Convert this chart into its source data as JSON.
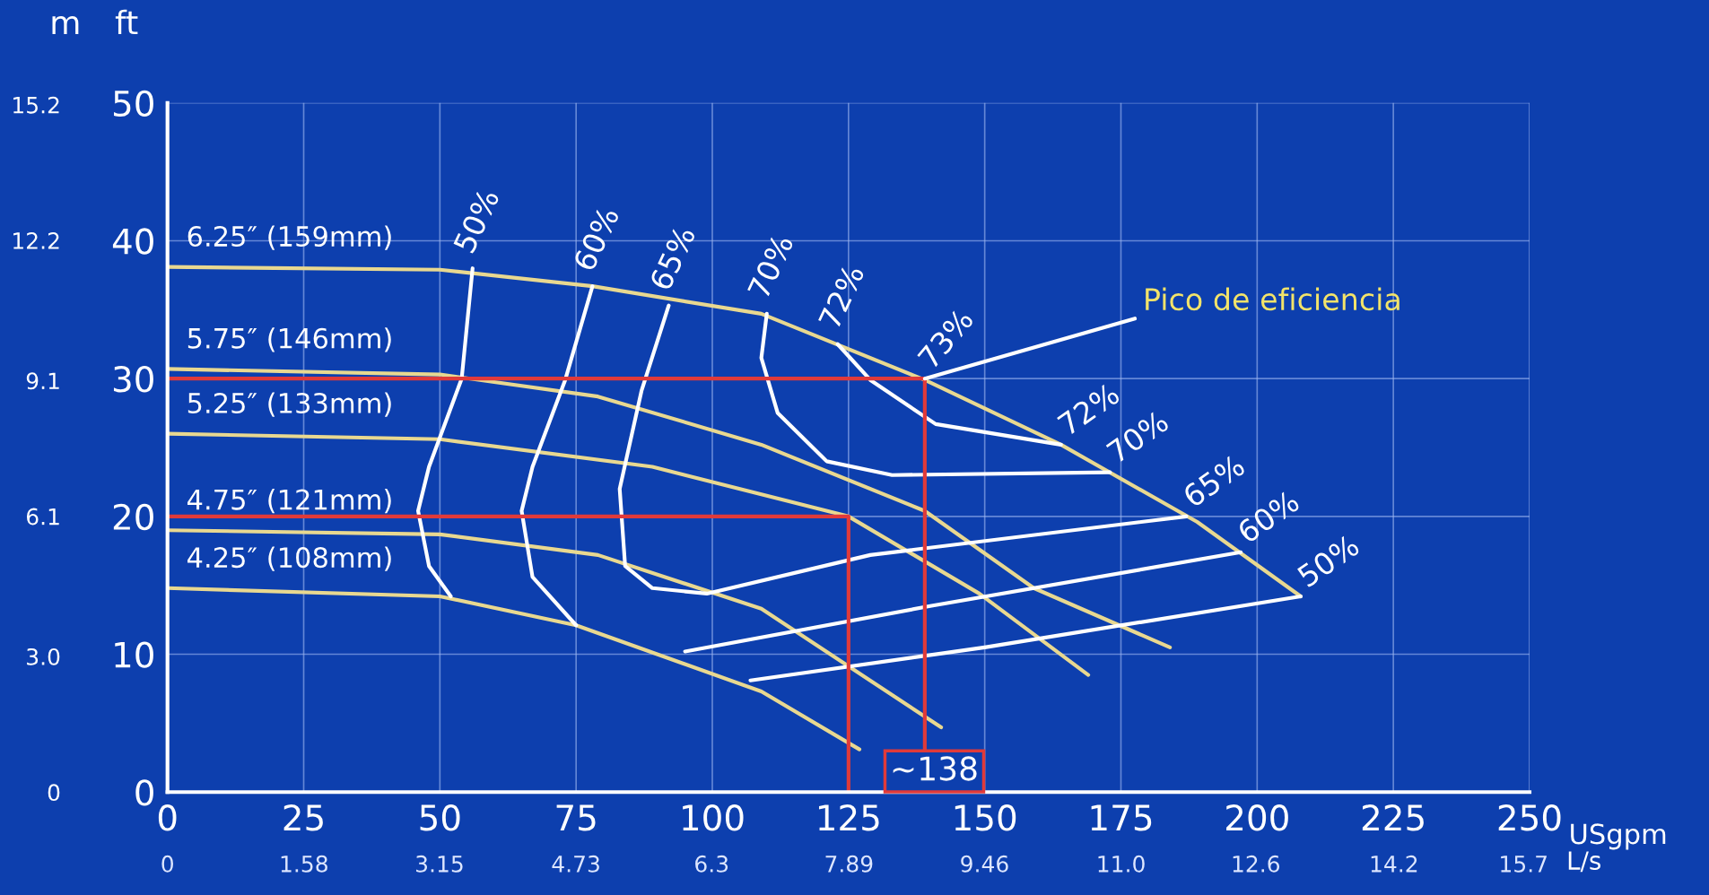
{
  "chart_data": {
    "type": "line",
    "xlabel": "USgpm",
    "x2label": "L/s",
    "ylabel": "ft",
    "y2label": "m",
    "xlim": [
      0,
      250
    ],
    "xticks": [
      0,
      25,
      50,
      75,
      100,
      125,
      150,
      175,
      200,
      225,
      250
    ],
    "x2lim": [
      0,
      15.77
    ],
    "x2ticks": [
      0,
      1.58,
      3.15,
      4.73,
      6.3,
      7.89,
      9.46,
      {
        "value": 11.04,
        "label": "11.0"
      },
      12.6,
      14.2,
      15.7
    ],
    "ylim": [
      0,
      50
    ],
    "yticks": [
      0,
      10,
      20,
      30,
      40,
      50
    ],
    "y2lim": [
      0,
      15.24
    ],
    "y2ticks": [
      0,
      {
        "value": 3.0,
        "label": "3.0"
      },
      6.1,
      9.1,
      12.2,
      15.2
    ],
    "grid": true,
    "legend": false,
    "marker": "none",
    "line_style": "solid",
    "series": [
      {
        "name": "6.25″ (159mm)",
        "color": "#e8d890",
        "x": [
          0,
          50,
          78,
          109,
          139,
          164,
          189,
          208
        ],
        "values": [
          38.1,
          37.9,
          36.7,
          34.7,
          29.9,
          25.2,
          19.6,
          14.2
        ]
      },
      {
        "name": "5.75″ (146mm)",
        "color": "#e8d890",
        "x": [
          0,
          50,
          79,
          109,
          139,
          159,
          184
        ],
        "values": [
          30.7,
          30.3,
          28.7,
          25.2,
          20.4,
          14.8,
          10.5
        ]
      },
      {
        "name": "5.25″ (133mm)",
        "color": "#e8d890",
        "x": [
          0,
          50,
          89,
          125,
          149,
          169
        ],
        "values": [
          26.0,
          25.6,
          23.6,
          20.0,
          14.4,
          8.5
        ]
      },
      {
        "name": "4.75″ (121mm)",
        "color": "#e8d890",
        "x": [
          0,
          50,
          79,
          109,
          142
        ],
        "values": [
          19.0,
          18.7,
          17.2,
          13.3,
          4.7
        ]
      },
      {
        "name": "4.25″ (108mm)",
        "color": "#e8d890",
        "x": [
          0,
          50,
          75,
          109,
          127
        ],
        "values": [
          14.8,
          14.2,
          12.1,
          7.3,
          3.1
        ]
      },
      {
        "name": "50%",
        "color": "#ffffff",
        "x": [
          56,
          54,
          48,
          46,
          48,
          52
        ],
        "values": [
          38.0,
          30.0,
          23.6,
          20.4,
          16.4,
          14.2
        ]
      },
      {
        "name": "50%",
        "color": "#ffffff",
        "x": [
          107,
          150,
          208
        ],
        "values": [
          8.1,
          10.5,
          14.2
        ]
      },
      {
        "name": "60%",
        "color": "#ffffff",
        "x": [
          78,
          73,
          67,
          65,
          67,
          75
        ],
        "values": [
          36.7,
          29.9,
          23.6,
          20.4,
          15.6,
          12.1
        ]
      },
      {
        "name": "60%",
        "color": "#ffffff",
        "x": [
          95,
          140,
          197
        ],
        "values": [
          10.2,
          13.5,
          17.4
        ]
      },
      {
        "name": "65%",
        "color": "#ffffff",
        "x": [
          92,
          87,
          83,
          84,
          89,
          99,
          129,
          187
        ],
        "values": [
          35.3,
          29.1,
          22.0,
          16.4,
          14.8,
          14.4,
          17.2,
          20.0
        ]
      },
      {
        "name": "70%",
        "color": "#ffffff",
        "x": [
          110,
          109,
          112,
          121,
          133,
          173
        ],
        "values": [
          34.7,
          31.5,
          27.5,
          24.0,
          23.0,
          23.2
        ]
      },
      {
        "name": "72%",
        "color": "#ffffff",
        "x": [
          123,
          129,
          141,
          164
        ],
        "values": [
          32.5,
          29.9,
          26.7,
          25.2
        ]
      },
      {
        "color": "#e03a3a",
        "x": [
          0,
          139,
          139
        ],
        "values": [
          30,
          30,
          0
        ]
      },
      {
        "color": "#e03a3a",
        "x": [
          0,
          125,
          125
        ],
        "values": [
          20,
          20,
          0
        ]
      }
    ],
    "annotations": [
      "73%",
      "~138",
      {
        "text": "Pico de eficiencia",
        "x": 139,
        "y": 30
      }
    ]
  }
}
